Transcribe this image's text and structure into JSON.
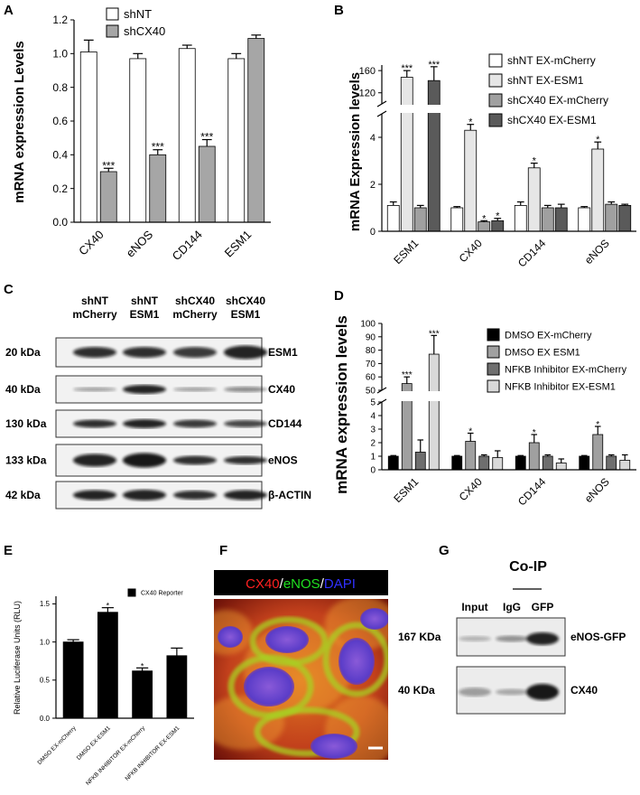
{
  "chart_data": [
    {
      "type": "bar",
      "panel": "A",
      "ylabel": "mRNA expression Levels",
      "categories": [
        "CX40",
        "eNOS",
        "CD144",
        "ESM1"
      ],
      "series": [
        {
          "name": "shNT",
          "color": "#ffffff",
          "values": [
            1.01,
            0.97,
            1.03,
            0.97
          ],
          "errors": [
            0.07,
            0.03,
            0.02,
            0.03
          ],
          "significance": [
            null,
            null,
            null,
            null
          ]
        },
        {
          "name": "shCX40",
          "color": "#a6a6a6",
          "values": [
            0.3,
            0.4,
            0.45,
            1.09
          ],
          "errors": [
            0.02,
            0.03,
            0.04,
            0.02
          ],
          "significance": [
            "***",
            "***",
            "***",
            null
          ]
        }
      ],
      "ylim": [
        0,
        1.2
      ],
      "yticks": [
        {
          "value": 0,
          "label": "0.0"
        },
        {
          "value": 0.2,
          "label": "0.2"
        },
        {
          "value": 0.4,
          "label": "0.4"
        },
        {
          "value": 0.6,
          "label": "0.6"
        },
        {
          "value": 0.8,
          "label": "0.8"
        },
        {
          "value": 1.0,
          "label": "1.0"
        },
        {
          "value": 1.2,
          "label": "1.2"
        }
      ]
    },
    {
      "type": "bar",
      "panel": "B",
      "ylabel": "mRNA Expression levels",
      "categories": [
        "ESM1",
        "CX40",
        "CD144",
        "eNOS"
      ],
      "series": [
        {
          "name": "shNT EX-mCherry",
          "color": "#ffffff",
          "values": [
            1.1,
            1.0,
            1.1,
            1.0
          ],
          "errors": [
            0.15,
            0.05,
            0.15,
            0.05
          ],
          "significance": [
            null,
            null,
            null,
            null
          ]
        },
        {
          "name": "shNT EX-ESM1",
          "color": "#e6e6e6",
          "values": [
            148,
            4.3,
            2.7,
            3.5
          ],
          "errors": [
            12,
            0.25,
            0.2,
            0.3
          ],
          "significance": [
            "***",
            "*",
            "*",
            "*"
          ]
        },
        {
          "name": "shCX40 EX-mCherry",
          "color": "#a0a0a0",
          "values": [
            1.0,
            0.4,
            1.0,
            1.15
          ],
          "errors": [
            0.1,
            0.05,
            0.1,
            0.1
          ],
          "significance": [
            null,
            "*",
            null,
            null
          ]
        },
        {
          "name": "shCX40 EX-ESM1",
          "color": "#5a5a5a",
          "values": [
            142,
            0.45,
            1.0,
            1.1
          ],
          "errors": [
            25,
            0.1,
            0.15,
            0.05
          ],
          "significance": [
            "***",
            "*",
            null,
            null
          ]
        }
      ],
      "ylim": [
        0,
        170
      ],
      "ybreak": [
        5,
        100
      ],
      "yticks": [
        0,
        2,
        4,
        120,
        160
      ]
    },
    {
      "type": "bar",
      "panel": "D",
      "ylabel": "mRNA expression levels",
      "categories": [
        "ESM1",
        "CX40",
        "CD144",
        "eNOS"
      ],
      "series": [
        {
          "name": "DMSO EX-mCherry",
          "color": "#000000",
          "values": [
            1,
            1,
            1,
            1
          ],
          "errors": [
            0.05,
            0.05,
            0.05,
            0.05
          ],
          "significance": [
            null,
            null,
            null,
            null
          ]
        },
        {
          "name": "DMSO EX ESM1",
          "color": "#a0a0a0",
          "values": [
            55,
            2.1,
            2.0,
            2.6
          ],
          "errors": [
            5,
            0.6,
            0.6,
            0.6
          ],
          "significance": [
            "***",
            "*",
            "*",
            "*"
          ]
        },
        {
          "name": "NFKB Inhibitor EX-mCherry",
          "color": "#6e6e6e",
          "values": [
            1.3,
            1,
            1,
            1
          ],
          "errors": [
            0.9,
            0.1,
            0.1,
            0.1
          ],
          "significance": [
            null,
            null,
            null,
            null
          ]
        },
        {
          "name": "NFKB Inhibitor EX-ESM1",
          "color": "#d9d9d9",
          "values": [
            77,
            0.9,
            0.5,
            0.7
          ],
          "errors": [
            14,
            0.5,
            0.3,
            0.4
          ],
          "significance": [
            "***",
            null,
            null,
            null
          ]
        }
      ],
      "ylim": [
        0,
        100
      ],
      "ybreak": [
        5,
        50
      ],
      "yticks": [
        0,
        1,
        2,
        3,
        4,
        5,
        50,
        60,
        70,
        80,
        90,
        100
      ]
    },
    {
      "type": "bar",
      "panel": "E",
      "ylabel": "Relative Luciferase Units (RLU)",
      "categories": [
        "DMSO EX-mCherry",
        "DMSO EX-ESM1",
        "NFKB INHIBITOR EX-mCherry",
        "NFKB INHIBITOR EX-ESM1"
      ],
      "series": [
        {
          "name": "CX40 Reporter",
          "color": "#000000",
          "values": [
            1.0,
            1.39,
            0.62,
            0.82
          ],
          "errors": [
            0.03,
            0.06,
            0.04,
            0.1
          ],
          "significance": [
            null,
            "*",
            "*",
            null
          ]
        }
      ],
      "ylim": [
        0,
        1.6
      ],
      "yticks": [
        {
          "value": 0,
          "label": "0.0"
        },
        {
          "value": 0.5,
          "label": "0.5"
        },
        {
          "value": 1.0,
          "label": "1.0"
        },
        {
          "value": 1.5,
          "label": "1.5"
        }
      ]
    }
  ],
  "blot_c": {
    "panel": "C",
    "lanes": [
      {
        "line1": "shNT",
        "line2": "mCherry"
      },
      {
        "line1": "shNT",
        "line2": "ESM1"
      },
      {
        "line1": "shCX40",
        "line2": "mCherry"
      },
      {
        "line1": "shCX40",
        "line2": "ESM1"
      }
    ],
    "rows": [
      {
        "weight": "20 kDa",
        "protein": "ESM1"
      },
      {
        "weight": "40 kDa",
        "protein": "CX40"
      },
      {
        "weight": "130 kDa",
        "protein": "CD144"
      },
      {
        "weight": "133 kDa",
        "protein": "eNOS"
      },
      {
        "weight": "42 kDa",
        "protein": "β-ACTIN"
      }
    ]
  },
  "image_f": {
    "panel": "F",
    "title_parts": [
      "CX40",
      "/",
      "eNOS",
      "/",
      "DAPI"
    ]
  },
  "blot_g": {
    "panel": "G",
    "title": "Co-IP",
    "lanes": [
      "Input",
      "IgG",
      "GFP"
    ],
    "rows": [
      {
        "weight": "167 KDa",
        "protein": "eNOS-GFP"
      },
      {
        "weight": "40 KDa",
        "protein": "CX40"
      }
    ]
  }
}
